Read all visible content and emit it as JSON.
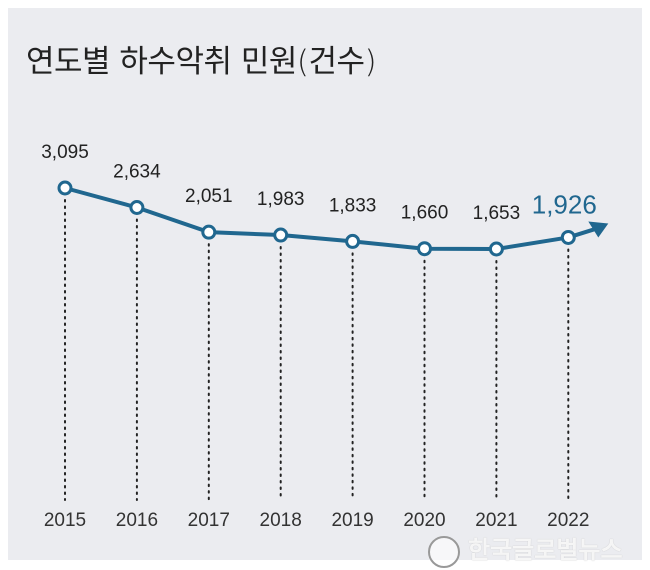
{
  "chart_data": {
    "type": "line",
    "title": "연도별 하수악취 민원(건수)",
    "categories": [
      "2015",
      "2016",
      "2017",
      "2018",
      "2019",
      "2020",
      "2021",
      "2022"
    ],
    "values": [
      3095,
      2634,
      2051,
      1983,
      1833,
      1660,
      1653,
      1926
    ],
    "labels": [
      "3,095",
      "2,634",
      "2,051",
      "1,983",
      "1,833",
      "1,660",
      "1,653",
      "1,926"
    ],
    "highlight_last": true,
    "line_color": "#20678f",
    "grid": false
  },
  "watermark": "한국글로벌뉴스"
}
